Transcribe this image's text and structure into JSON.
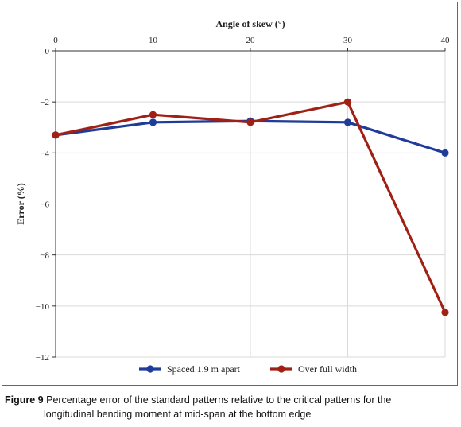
{
  "caption": {
    "figure_label": "Figure 9",
    "line1": "Percentage error of the standard patterns relative to the critical patterns for the",
    "line2": "longitudinal bending moment at mid-span at the bottom edge"
  },
  "colors": {
    "series1": "#1f3c9a",
    "series2": "#a02015",
    "grid": "#d9d9d9",
    "axis": "#333333"
  },
  "chart_data": {
    "type": "line",
    "title": "",
    "xlabel": "Angle of skew (°)",
    "ylabel": "Error (%)",
    "x_axis_position": "top",
    "xlim": [
      0,
      40
    ],
    "ylim": [
      -12,
      0
    ],
    "x_ticks": [
      0,
      10,
      20,
      30,
      40
    ],
    "y_ticks": [
      0,
      -2,
      -4,
      -6,
      -8,
      -10,
      -12
    ],
    "y_tick_labels": [
      "0",
      "−2",
      "−4",
      "−6",
      "−8",
      "−10",
      "−12"
    ],
    "grid": true,
    "legend_position": "bottom",
    "x": [
      0,
      10,
      20,
      30,
      40
    ],
    "series": [
      {
        "name": "Spaced 1.9 m apart",
        "values": [
          -3.3,
          -2.8,
          -2.75,
          -2.8,
          -4.0
        ]
      },
      {
        "name": "Over full width",
        "values": [
          -3.3,
          -2.5,
          -2.8,
          -2.0,
          -10.25
        ]
      }
    ]
  }
}
